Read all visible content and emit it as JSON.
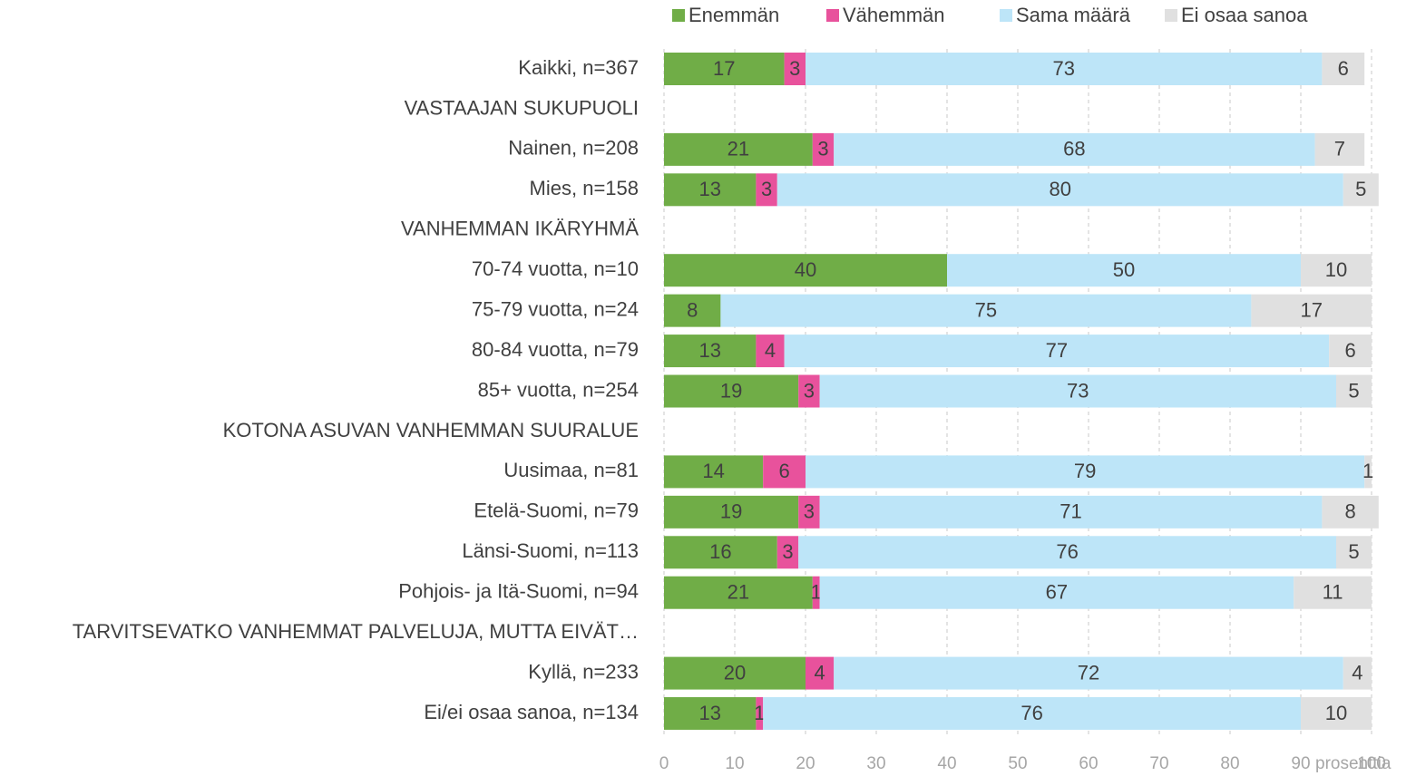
{
  "chart_data": {
    "type": "stacked_barh",
    "categories": [
      "Kaikki, n=367",
      "VASTAAJAN SUKUPUOLI",
      "Nainen, n=208",
      "Mies, n=158",
      "VANHEMMAN IKÄRYHMÄ",
      "70-74 vuotta, n=10",
      "75-79 vuotta, n=24",
      "80-84 vuotta, n=79",
      "85+ vuotta, n=254",
      "KOTONA ASUVAN VANHEMMAN SUURALUE",
      "Uusimaa, n=81",
      "Etelä-Suomi, n=79",
      "Länsi-Suomi, n=113",
      "Pohjois- ja Itä-Suomi, n=94",
      "TARVITSEVATKO VANHEMMAT PALVELUJA, MUTTA EIVÄT…",
      "Kyllä, n=233",
      "Ei/ei osaa sanoa, n=134"
    ],
    "series": [
      {
        "name": "Enemmän",
        "color": "#70ad47",
        "values": [
          17,
          null,
          21,
          13,
          null,
          40,
          8,
          13,
          19,
          null,
          14,
          19,
          16,
          21,
          null,
          20,
          13
        ]
      },
      {
        "name": "Vähemmän",
        "color": "#e8529c",
        "values": [
          3,
          null,
          3,
          3,
          null,
          null,
          null,
          4,
          3,
          null,
          6,
          3,
          3,
          1,
          null,
          4,
          1
        ]
      },
      {
        "name": "Sama määrä",
        "color": "#bde5f8",
        "values": [
          73,
          null,
          68,
          80,
          null,
          50,
          75,
          77,
          73,
          null,
          79,
          71,
          76,
          67,
          null,
          72,
          76
        ]
      },
      {
        "name": "Ei osaa sanoa",
        "color": "#e0e0e0",
        "values": [
          6,
          null,
          7,
          5,
          null,
          10,
          17,
          6,
          5,
          null,
          1,
          8,
          5,
          11,
          null,
          4,
          10
        ]
      }
    ],
    "xlabel": "prosenttia",
    "xlim": [
      0,
      100
    ],
    "xticks": [
      0,
      10,
      20,
      30,
      40,
      50,
      60,
      70,
      80,
      90,
      100
    ],
    "grid": true,
    "legend": "top"
  }
}
